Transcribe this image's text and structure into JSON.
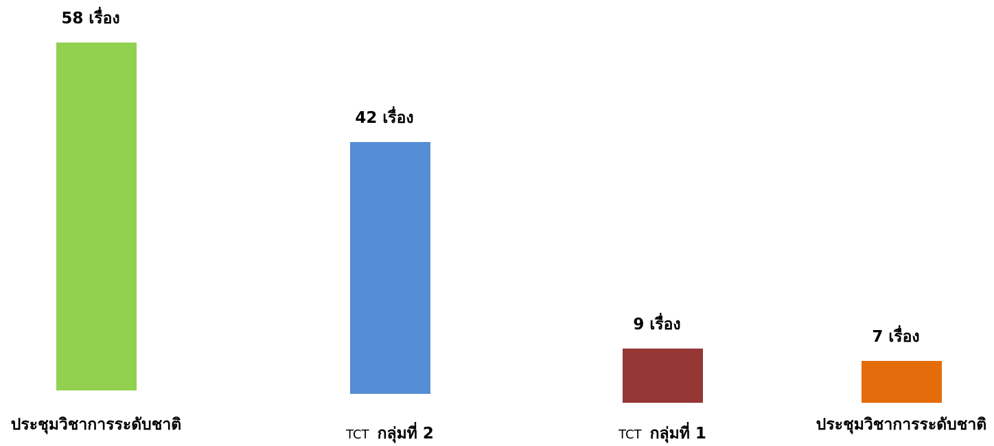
{
  "chart_data": {
    "type": "bar",
    "categories": [
      {
        "prefix": "",
        "label": "ประชุมวิชาการระดับชาติ"
      },
      {
        "prefix": "TCT",
        "label": "กลุ่มที่ 2"
      },
      {
        "prefix": "TCT",
        "label": "กลุ่มที่ 1"
      },
      {
        "prefix": "",
        "label": "ประชุมวิชาการระดับชาติ"
      }
    ],
    "values": [
      58,
      42,
      9,
      7
    ],
    "value_labels": [
      "58 เรื่อง",
      "42 เรื่อง",
      "9 เรื่อง",
      "7 เรื่อง"
    ],
    "colors": [
      "#92d050",
      "#558ed5",
      "#953735",
      "#e46c0a"
    ],
    "ylim": [
      0,
      58
    ],
    "grid": false,
    "legend": "none"
  }
}
